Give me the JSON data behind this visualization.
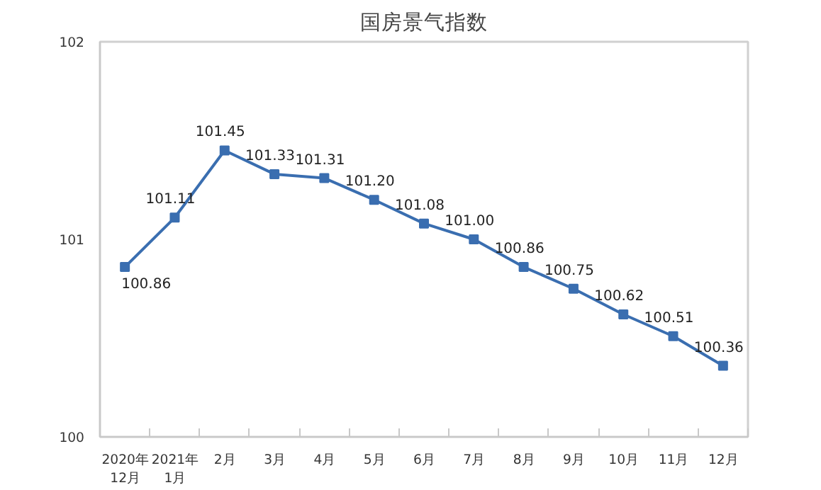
{
  "chart_data": {
    "type": "line",
    "title": "国房景气指数",
    "categories": [
      "2020年\n12月",
      "2021年\n1月",
      "2月",
      "3月",
      "4月",
      "5月",
      "6月",
      "7月",
      "8月",
      "9月",
      "10月",
      "11月",
      "12月"
    ],
    "series": [
      {
        "color": "#3a6eb0",
        "values": [
          100.86,
          101.11,
          101.45,
          101.33,
          101.31,
          101.2,
          101.08,
          101.0,
          100.86,
          100.75,
          100.62,
          100.51,
          100.36
        ]
      }
    ],
    "value_labels": [
      "100.86",
      "101.11",
      "101.45",
      "101.33",
      "101.31",
      "101.20",
      "101.08",
      "101.00",
      "100.86",
      "100.75",
      "100.62",
      "100.51",
      "100.36"
    ],
    "ylim": [
      100,
      102
    ],
    "yticks": [
      100,
      101,
      102
    ],
    "grid": false,
    "marker": "square",
    "line_style": "solid"
  }
}
